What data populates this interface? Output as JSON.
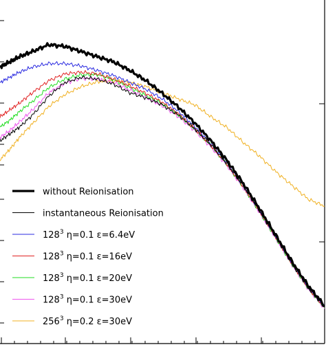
{
  "chart_data": {
    "type": "line",
    "title": "",
    "xlabel": "",
    "ylabel": "",
    "xlim": [
      0,
      1
    ],
    "ylim": [
      0,
      1
    ],
    "grid": false,
    "legend_position": "bottom-left",
    "series": [
      {
        "name": "without Reionisation",
        "color": "#000000",
        "x": [
          0.0,
          0.03,
          0.06,
          0.1,
          0.15,
          0.2,
          0.25,
          0.3,
          0.35,
          0.4,
          0.45,
          0.5,
          0.55,
          0.6,
          0.65,
          0.7,
          0.75,
          0.8,
          0.85,
          0.9,
          0.95,
          1.0
        ],
        "y": [
          0.805,
          0.82,
          0.835,
          0.85,
          0.87,
          0.865,
          0.85,
          0.835,
          0.82,
          0.795,
          0.765,
          0.728,
          0.688,
          0.642,
          0.59,
          0.532,
          0.465,
          0.392,
          0.315,
          0.238,
          0.168,
          0.11
        ]
      },
      {
        "name": "instantaneous Reionisation",
        "color": "#000000",
        "x": [
          0.0,
          0.03,
          0.06,
          0.1,
          0.15,
          0.2,
          0.25,
          0.3,
          0.35,
          0.4,
          0.45,
          0.5,
          0.55,
          0.6,
          0.65,
          0.7,
          0.75,
          0.8,
          0.85,
          0.9,
          0.95,
          1.0
        ],
        "y": [
          0.59,
          0.61,
          0.63,
          0.665,
          0.72,
          0.76,
          0.775,
          0.77,
          0.755,
          0.73,
          0.715,
          0.695,
          0.665,
          0.625,
          0.578,
          0.522,
          0.458,
          0.385,
          0.31,
          0.232,
          0.162,
          0.106
        ]
      },
      {
        "name": "128³ η=0.1 ε=6.4eV",
        "color": "#2a2ae0",
        "x": [
          0.0,
          0.03,
          0.06,
          0.1,
          0.15,
          0.2,
          0.25,
          0.3,
          0.35,
          0.4,
          0.45,
          0.5,
          0.55,
          0.6,
          0.65,
          0.7,
          0.75,
          0.8,
          0.85,
          0.9,
          0.95,
          1.0
        ],
        "y": [
          0.76,
          0.775,
          0.79,
          0.805,
          0.815,
          0.815,
          0.808,
          0.795,
          0.78,
          0.76,
          0.74,
          0.712,
          0.676,
          0.632,
          0.582,
          0.525,
          0.46,
          0.388,
          0.312,
          0.234,
          0.164,
          0.108
        ]
      },
      {
        "name": "128³ η=0.1 ε=16eV",
        "color": "#e02020",
        "x": [
          0.0,
          0.03,
          0.06,
          0.1,
          0.15,
          0.2,
          0.25,
          0.3,
          0.35,
          0.4,
          0.45,
          0.5,
          0.55,
          0.6,
          0.65,
          0.7,
          0.75,
          0.8,
          0.85,
          0.9,
          0.95,
          1.0
        ],
        "y": [
          0.66,
          0.68,
          0.7,
          0.73,
          0.765,
          0.785,
          0.79,
          0.785,
          0.77,
          0.75,
          0.728,
          0.702,
          0.668,
          0.626,
          0.577,
          0.521,
          0.456,
          0.385,
          0.309,
          0.232,
          0.162,
          0.106
        ]
      },
      {
        "name": "128³ η=0.1 ε=20eV",
        "color": "#22dd22",
        "x": [
          0.0,
          0.03,
          0.06,
          0.1,
          0.15,
          0.2,
          0.25,
          0.3,
          0.35,
          0.4,
          0.45,
          0.5,
          0.55,
          0.6,
          0.65,
          0.7,
          0.75,
          0.8,
          0.85,
          0.9,
          0.95,
          1.0
        ],
        "y": [
          0.63,
          0.65,
          0.675,
          0.705,
          0.745,
          0.77,
          0.782,
          0.783,
          0.768,
          0.745,
          0.722,
          0.698,
          0.665,
          0.624,
          0.576,
          0.52,
          0.455,
          0.383,
          0.307,
          0.23,
          0.16,
          0.104
        ]
      },
      {
        "name": "128³ η=0.1 ε=30eV",
        "color": "#ee55ee",
        "x": [
          0.0,
          0.03,
          0.06,
          0.1,
          0.15,
          0.2,
          0.25,
          0.3,
          0.35,
          0.4,
          0.45,
          0.5,
          0.55,
          0.6,
          0.65,
          0.7,
          0.75,
          0.8,
          0.85,
          0.9,
          0.95,
          1.0
        ],
        "y": [
          0.6,
          0.62,
          0.645,
          0.68,
          0.73,
          0.758,
          0.772,
          0.77,
          0.76,
          0.738,
          0.716,
          0.692,
          0.66,
          0.62,
          0.572,
          0.517,
          0.452,
          0.38,
          0.305,
          0.228,
          0.158,
          0.102
        ]
      },
      {
        "name": "256³ η=0.2 ε=30eV",
        "color": "#f0b020",
        "x": [
          0.0,
          0.03,
          0.06,
          0.1,
          0.15,
          0.2,
          0.25,
          0.3,
          0.35,
          0.4,
          0.45,
          0.5,
          0.55,
          0.6,
          0.65,
          0.7,
          0.75,
          0.8,
          0.85,
          0.9,
          0.95,
          1.0
        ],
        "y": [
          0.535,
          0.565,
          0.6,
          0.64,
          0.69,
          0.725,
          0.748,
          0.762,
          0.765,
          0.76,
          0.748,
          0.73,
          0.712,
          0.695,
          0.66,
          0.628,
          0.585,
          0.545,
          0.5,
          0.46,
          0.42,
          0.4
        ]
      }
    ]
  },
  "legend": {
    "entries": [
      {
        "prefix": "without Reionisation",
        "sup": "",
        "rest": ""
      },
      {
        "prefix": "instantaneous Reionisation",
        "sup": "",
        "rest": ""
      },
      {
        "prefix": "128",
        "sup": "3",
        "rest": " η=0.1 ε=6.4eV"
      },
      {
        "prefix": "128",
        "sup": "3",
        "rest": " η=0.1 ε=16eV"
      },
      {
        "prefix": "128",
        "sup": "3",
        "rest": " η=0.1 ε=20eV"
      },
      {
        "prefix": "128",
        "sup": "3",
        "rest": " η=0.1 ε=30eV"
      },
      {
        "prefix": "256",
        "sup": "3",
        "rest": " η=0.2 ε=30eV"
      }
    ]
  }
}
